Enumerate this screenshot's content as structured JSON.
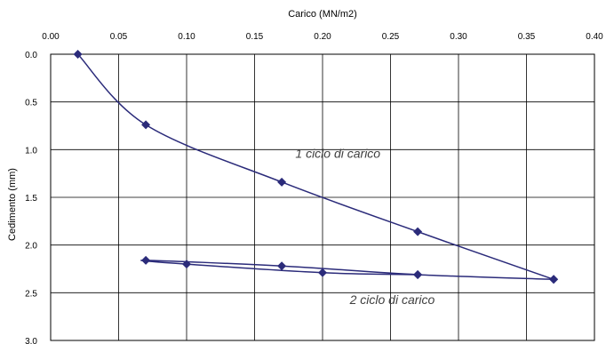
{
  "chart_data": {
    "type": "line",
    "xlabel": "Carico (MN/m2)",
    "ylabel": "Cedimento (mm)",
    "xlim": [
      0.0,
      0.4
    ],
    "ylim": [
      0.0,
      3.0
    ],
    "y_inverted": true,
    "x_axis_position": "top",
    "grid": true,
    "x_ticks": [
      "0.00",
      "0.05",
      "0.10",
      "0.15",
      "0.20",
      "0.25",
      "0.30",
      "0.35",
      "0.40"
    ],
    "y_ticks": [
      "0.0",
      "0.5",
      "1.0",
      "1.5",
      "2.0",
      "2.5",
      "3.0"
    ],
    "line_color": "#2b2b7a",
    "marker": "diamond",
    "series": [
      {
        "name": "1 ciclo di carico",
        "x": [
          0.02,
          0.07,
          0.17,
          0.27,
          0.37
        ],
        "y": [
          0.0,
          0.74,
          1.34,
          1.86,
          2.36
        ]
      },
      {
        "name": "2 ciclo di carico",
        "x": [
          0.37,
          0.27,
          0.17,
          0.07,
          0.1,
          0.2,
          0.27
        ],
        "y": [
          2.36,
          2.31,
          2.22,
          2.16,
          2.2,
          2.29,
          2.31
        ]
      }
    ],
    "annotations": [
      {
        "text": "1  ciclo di carico",
        "x": 0.18,
        "y": 1.04
      },
      {
        "text": "2  ciclo di carico",
        "x": 0.22,
        "y": 2.57
      }
    ]
  }
}
